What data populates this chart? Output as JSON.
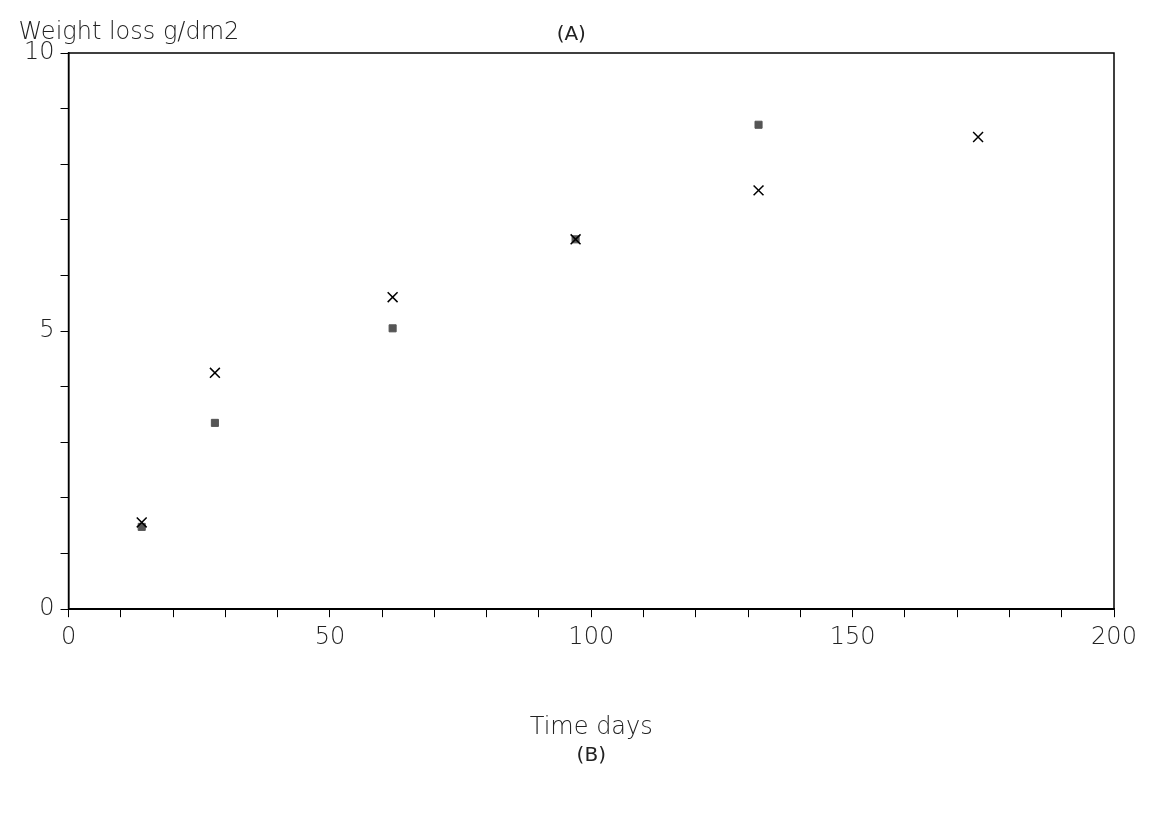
{
  "chart_data": {
    "type": "scatter",
    "ylabel": "Weight loss g/dm2",
    "xlabel": "Time days",
    "annotations": [
      "(A)",
      "(B)"
    ],
    "series": [
      {
        "marker": "square",
        "color": "#555555",
        "x": [
          14,
          28,
          62,
          97,
          132
        ],
        "values": [
          1.48,
          3.35,
          5.05,
          6.65,
          8.71
        ]
      },
      {
        "marker": "cross",
        "color": "#000000",
        "x": [
          14,
          28,
          62,
          97,
          132,
          174
        ],
        "values": [
          1.56,
          4.25,
          5.61,
          6.65,
          7.53,
          8.49
        ]
      }
    ],
    "xlim": [
      0,
      200
    ],
    "ylim": [
      0,
      10
    ],
    "xticks": [
      0,
      {
        "value": 10,
        "label": null
      },
      {
        "value": 20,
        "label": null
      },
      {
        "value": 30,
        "label": null
      },
      {
        "value": 40,
        "label": null
      },
      50,
      {
        "value": 60,
        "label": null
      },
      {
        "value": 70,
        "label": null
      },
      {
        "value": 80,
        "label": null
      },
      {
        "value": 90,
        "label": null
      },
      100,
      {
        "value": 110,
        "label": null
      },
      {
        "value": 120,
        "label": null
      },
      {
        "value": 130,
        "label": null
      },
      {
        "value": 140,
        "label": null
      },
      150,
      {
        "value": 160,
        "label": null
      },
      {
        "value": 170,
        "label": null
      },
      {
        "value": 180,
        "label": null
      },
      {
        "value": 190,
        "label": null
      },
      200
    ],
    "yticks": [
      0,
      {
        "value": 1,
        "label": null
      },
      {
        "value": 2,
        "label": null
      },
      {
        "value": 3,
        "label": null
      },
      {
        "value": 4,
        "label": null
      },
      5,
      {
        "value": 6,
        "label": null
      },
      {
        "value": 7,
        "label": null
      },
      {
        "value": 8,
        "label": null
      },
      {
        "value": 9,
        "label": null
      },
      10
    ],
    "grid": false,
    "legend": false
  }
}
